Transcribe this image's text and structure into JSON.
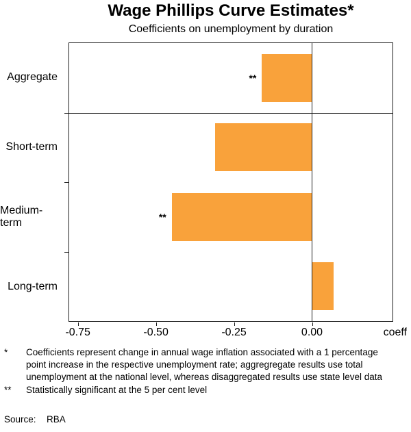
{
  "chart_data": {
    "type": "bar",
    "orientation": "horizontal",
    "title": "Wage Phillips Curve Estimates*",
    "subtitle": "Coefficients on unemployment by duration",
    "categories": [
      "Aggregate",
      "Short-term",
      "Medium-term",
      "Long-term"
    ],
    "values": [
      -0.16,
      -0.31,
      -0.45,
      0.07
    ],
    "significance": [
      "**",
      "",
      "**",
      ""
    ],
    "xlabel": "coeff",
    "xlim": [
      -0.78,
      0.26
    ],
    "xticks": [
      -0.75,
      -0.5,
      -0.25,
      0
    ],
    "xtick_labels": [
      "-0.75",
      "-0.50",
      "-0.25",
      "0.00"
    ],
    "bar_color": "#F9A23B",
    "axis_color": "#1a1a1a",
    "grid": "horizontal panel divider below first category; vertical zero line",
    "legend": "none"
  },
  "footnotes": [
    {
      "marker": "*",
      "text": "Coefficients represent change in annual wage inflation associated with a 1 percentage point increase in the respective unemployment rate; aggregregate results use total unemployment at the national level, whereas disaggregated results use state level data"
    },
    {
      "marker": "**",
      "text": "Statistically significant at the 5 per cent level"
    }
  ],
  "source": {
    "label": "Source:",
    "value": "RBA"
  }
}
